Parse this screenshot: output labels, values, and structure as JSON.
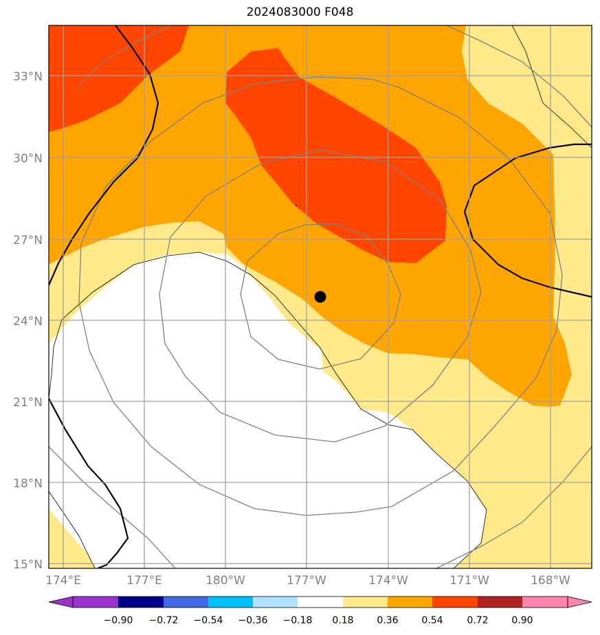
{
  "title": "2024083000 F048",
  "map": {
    "lat_labels": [
      "15°N",
      "18°N",
      "21°N",
      "24°N",
      "27°N",
      "30°N",
      "33°N"
    ],
    "lon_labels": [
      "174°E",
      "177°E",
      "180°W",
      "177°W",
      "174°W",
      "171°W",
      "168°W"
    ],
    "storm_marker": {
      "lon": -176.5,
      "lat": 24.8
    },
    "fill_colors": {
      "0.18-0.36": "#ffe98a",
      "0.36-0.54": "#ffa500",
      "0.54-0.72": "#ff4500"
    },
    "contour_color": "#808080",
    "coastline_color": "#000000"
  },
  "colorbar": {
    "levels": [
      "−0.90",
      "−0.72",
      "−0.54",
      "−0.36",
      "−0.18",
      "0.18",
      "0.36",
      "0.54",
      "0.72",
      "0.90"
    ],
    "colors": [
      "#9932cc",
      "#00008b",
      "#4169e1",
      "#00bfff",
      "#b0e2ff",
      "#ffffff",
      "#ffe98a",
      "#ffa500",
      "#ff4500",
      "#b22222",
      "#ff82ab"
    ]
  }
}
